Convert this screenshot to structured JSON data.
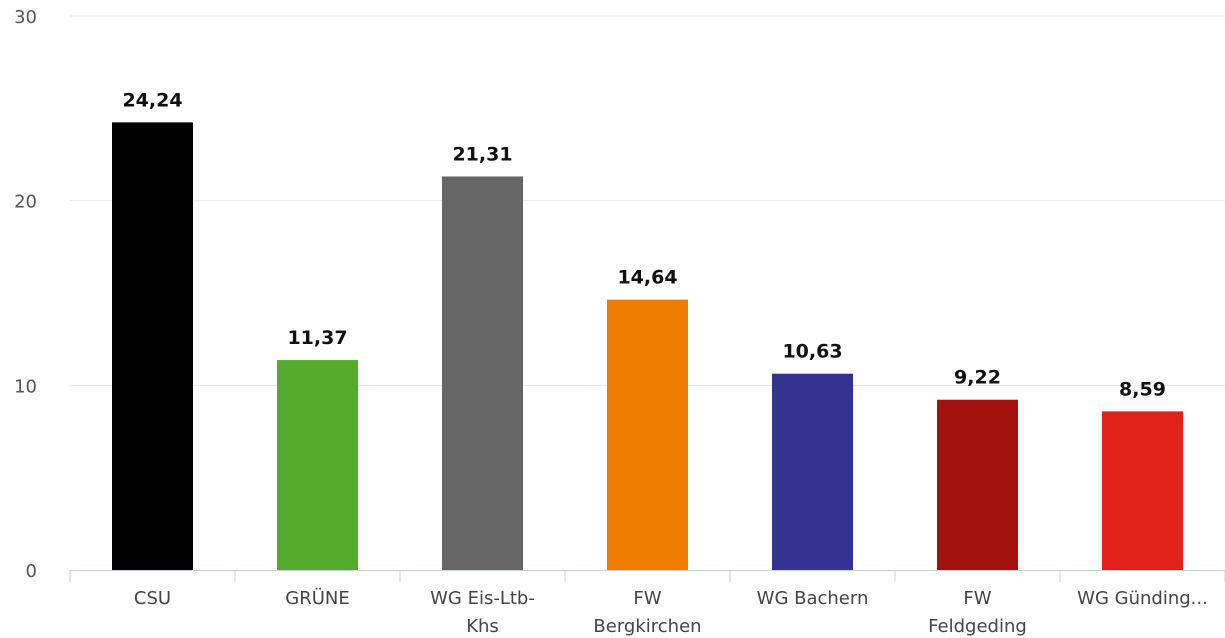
{
  "chart_data": {
    "type": "bar",
    "title": "",
    "xlabel": "",
    "ylabel": "",
    "ylim": [
      0,
      30
    ],
    "yticks": [
      "0",
      "10",
      "20",
      "30"
    ],
    "grid": true,
    "legend": "none",
    "categories": [
      [
        "CSU"
      ],
      [
        "GRÜNE"
      ],
      [
        "WG Eis-Ltb-",
        "Khs"
      ],
      [
        "FW",
        "Bergkirchen"
      ],
      [
        "WG Bachern"
      ],
      [
        "FW",
        "Feldgeding"
      ],
      [
        "WG Günding..."
      ]
    ],
    "values": [
      24.24,
      11.37,
      21.31,
      14.64,
      10.63,
      9.22,
      8.59
    ],
    "value_labels": [
      "24,24",
      "11,37",
      "21,31",
      "14,64",
      "10,63",
      "9,22",
      "8,59"
    ],
    "colors": [
      "#000000",
      "#56ab2f",
      "#666666",
      "#f07d00",
      "#343392",
      "#a3120f",
      "#e2211a"
    ],
    "grid_color": "#e6e6e6",
    "axis_color": "#c7d3e3"
  }
}
